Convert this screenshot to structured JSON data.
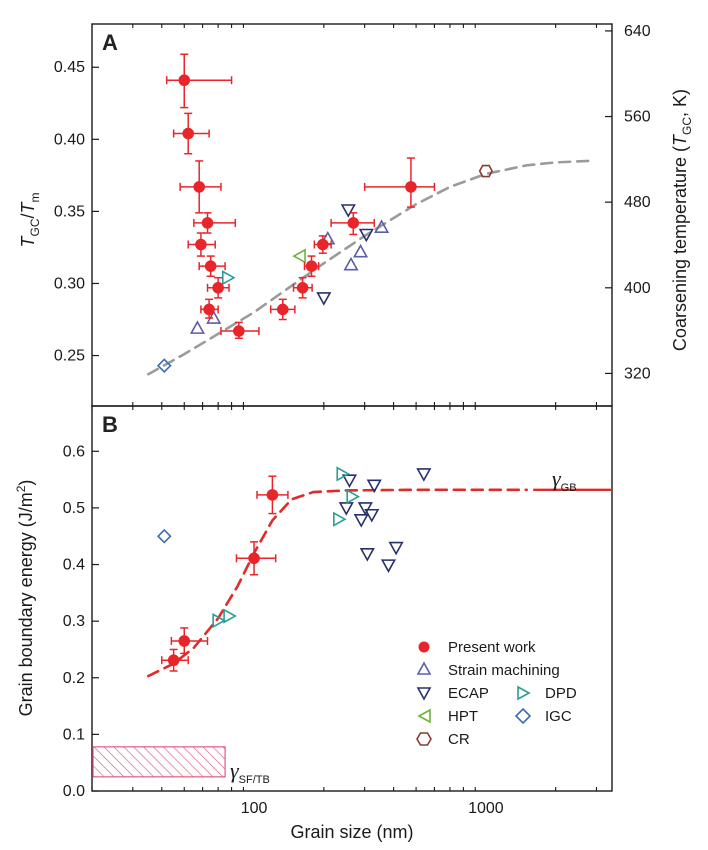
{
  "chart_data": [
    {
      "panel": "A",
      "type": "scatter",
      "xlabel": "Grain size (nm)",
      "ylabel_left": {
        "main": "T",
        "sub1": "GC",
        "slash": "/",
        "main2": "T",
        "sub2": "m"
      },
      "ylabel_right": {
        "pre": "Coarsening temperature (",
        "main": "T",
        "sub": "GC",
        "post": ", K)"
      },
      "x_scale": "log",
      "xlim": [
        20,
        3500
      ],
      "ylim": [
        0.215,
        0.48
      ],
      "y_ticks": [
        0.25,
        0.3,
        0.35,
        0.4,
        0.45
      ],
      "y_tick_labels": [
        "0.25",
        "0.30",
        "0.35",
        "0.40",
        "0.45"
      ],
      "right_ticks": [
        {
          "label": "320",
          "y": 0.2376
        },
        {
          "label": "400",
          "y": 0.297
        },
        {
          "label": "480",
          "y": 0.3564
        },
        {
          "label": "560",
          "y": 0.4158
        },
        {
          "label": "640",
          "y": 0.4752
        }
      ],
      "present_work": [
        {
          "x": 50,
          "y": 0.441,
          "xlo": 42,
          "xhi": 80,
          "ylo": 0.422,
          "yhi": 0.459
        },
        {
          "x": 52,
          "y": 0.404,
          "xlo": 45,
          "xhi": 64,
          "ylo": 0.39,
          "yhi": 0.418
        },
        {
          "x": 58,
          "y": 0.367,
          "xlo": 48,
          "xhi": 72,
          "ylo": 0.349,
          "yhi": 0.385
        },
        {
          "x": 63,
          "y": 0.342,
          "xlo": 55,
          "xhi": 83,
          "ylo": 0.335,
          "yhi": 0.349
        },
        {
          "x": 59,
          "y": 0.327,
          "xlo": 52,
          "xhi": 68,
          "ylo": 0.319,
          "yhi": 0.335
        },
        {
          "x": 65,
          "y": 0.312,
          "xlo": 58,
          "xhi": 75,
          "ylo": 0.305,
          "yhi": 0.319
        },
        {
          "x": 70,
          "y": 0.297,
          "xlo": 63,
          "xhi": 78,
          "ylo": 0.29,
          "yhi": 0.304
        },
        {
          "x": 64,
          "y": 0.282,
          "xlo": 59,
          "xhi": 70,
          "ylo": 0.276,
          "yhi": 0.289
        },
        {
          "x": 86,
          "y": 0.267,
          "xlo": 72,
          "xhi": 105,
          "ylo": 0.262,
          "yhi": 0.273
        },
        {
          "x": 133,
          "y": 0.282,
          "xlo": 118,
          "xhi": 150,
          "ylo": 0.275,
          "yhi": 0.289
        },
        {
          "x": 162,
          "y": 0.297,
          "xlo": 148,
          "xhi": 178,
          "ylo": 0.29,
          "yhi": 0.304
        },
        {
          "x": 177,
          "y": 0.312,
          "xlo": 165,
          "xhi": 190,
          "ylo": 0.305,
          "yhi": 0.319
        },
        {
          "x": 198,
          "y": 0.327,
          "xlo": 182,
          "xhi": 215,
          "ylo": 0.321,
          "yhi": 0.333
        },
        {
          "x": 268,
          "y": 0.342,
          "xlo": 215,
          "xhi": 330,
          "ylo": 0.334,
          "yhi": 0.349
        },
        {
          "x": 475,
          "y": 0.367,
          "xlo": 300,
          "xhi": 600,
          "ylo": 0.353,
          "yhi": 0.387
        }
      ],
      "strain_machining": [
        {
          "x": 57,
          "y": 0.269
        },
        {
          "x": 67,
          "y": 0.276
        },
        {
          "x": 208,
          "y": 0.331
        },
        {
          "x": 262,
          "y": 0.313
        },
        {
          "x": 288,
          "y": 0.322
        },
        {
          "x": 355,
          "y": 0.339
        }
      ],
      "ecap": [
        {
          "x": 200,
          "y": 0.29
        },
        {
          "x": 255,
          "y": 0.351
        },
        {
          "x": 305,
          "y": 0.334
        }
      ],
      "dpd": [
        {
          "x": 77,
          "y": 0.304
        }
      ],
      "hpt": [
        {
          "x": 158,
          "y": 0.319
        }
      ],
      "igc": [
        {
          "x": 41,
          "y": 0.243
        }
      ],
      "cr": [
        {
          "x": 1000,
          "y": 0.378
        }
      ],
      "fit_curve": [
        {
          "x": 35,
          "y": 0.237
        },
        {
          "x": 50,
          "y": 0.251
        },
        {
          "x": 70,
          "y": 0.265
        },
        {
          "x": 100,
          "y": 0.28
        },
        {
          "x": 150,
          "y": 0.3
        },
        {
          "x": 200,
          "y": 0.314
        },
        {
          "x": 300,
          "y": 0.333
        },
        {
          "x": 500,
          "y": 0.355
        },
        {
          "x": 700,
          "y": 0.367
        },
        {
          "x": 1000,
          "y": 0.376
        },
        {
          "x": 1500,
          "y": 0.382
        },
        {
          "x": 2000,
          "y": 0.384
        },
        {
          "x": 2800,
          "y": 0.385
        }
      ]
    },
    {
      "panel": "B",
      "type": "scatter",
      "xlabel": "Grain size (nm)",
      "ylabel": {
        "pre": "Grain boundary energy (J/m",
        "sup": "2",
        "post": ")"
      },
      "x_scale": "log",
      "xlim": [
        20,
        3500
      ],
      "x_ticks": [
        100,
        1000
      ],
      "x_tick_labels": [
        "100",
        "1000"
      ],
      "ylim": [
        0,
        0.68
      ],
      "y_ticks": [
        0,
        0.1,
        0.2,
        0.3,
        0.4,
        0.5,
        0.6
      ],
      "y_tick_labels": [
        "0.0",
        "0.1",
        "0.2",
        "0.3",
        "0.4",
        "0.5",
        "0.6"
      ],
      "present_work": [
        {
          "x": 45,
          "y": 0.231,
          "xlo": 40,
          "xhi": 52,
          "ylo": 0.212,
          "yhi": 0.25
        },
        {
          "x": 50,
          "y": 0.265,
          "xlo": 44,
          "xhi": 63,
          "ylo": 0.243,
          "yhi": 0.288
        },
        {
          "x": 100,
          "y": 0.411,
          "xlo": 84,
          "xhi": 124,
          "ylo": 0.382,
          "yhi": 0.44
        },
        {
          "x": 120,
          "y": 0.523,
          "xlo": 103,
          "xhi": 140,
          "ylo": 0.49,
          "yhi": 0.556
        }
      ],
      "strain_machining": [],
      "ecap": [
        {
          "x": 258,
          "y": 0.549
        },
        {
          "x": 250,
          "y": 0.5
        },
        {
          "x": 290,
          "y": 0.479
        },
        {
          "x": 302,
          "y": 0.5
        },
        {
          "x": 308,
          "y": 0.419
        },
        {
          "x": 330,
          "y": 0.54
        },
        {
          "x": 322,
          "y": 0.488
        },
        {
          "x": 380,
          "y": 0.399
        },
        {
          "x": 410,
          "y": 0.43
        },
        {
          "x": 540,
          "y": 0.56
        }
      ],
      "dpd": [
        {
          "x": 70,
          "y": 0.301
        },
        {
          "x": 78,
          "y": 0.309
        },
        {
          "x": 232,
          "y": 0.48
        },
        {
          "x": 240,
          "y": 0.56
        },
        {
          "x": 265,
          "y": 0.52
        }
      ],
      "hpt": [],
      "igc": [
        {
          "x": 41,
          "y": 0.45
        }
      ],
      "cr": [],
      "fit_curve": [
        {
          "x": 35,
          "y": 0.203
        },
        {
          "x": 45,
          "y": 0.225
        },
        {
          "x": 55,
          "y": 0.253
        },
        {
          "x": 70,
          "y": 0.305
        },
        {
          "x": 85,
          "y": 0.362
        },
        {
          "x": 100,
          "y": 0.42
        },
        {
          "x": 120,
          "y": 0.478
        },
        {
          "x": 145,
          "y": 0.515
        },
        {
          "x": 180,
          "y": 0.528
        },
        {
          "x": 250,
          "y": 0.531
        },
        {
          "x": 500,
          "y": 0.532
        },
        {
          "x": 1000,
          "y": 0.532
        },
        {
          "x": 1500,
          "y": 0.532
        }
      ],
      "gamma_gb": {
        "value": 0.532,
        "x_from": 1600,
        "x_to": 3500,
        "symbol": "γ",
        "sub": "GB"
      },
      "gamma_sf_tb": {
        "y_from": 0.025,
        "y_to": 0.078,
        "x_from": 20,
        "x_to": 75,
        "symbol": "γ",
        "sub": "SF/TB"
      }
    }
  ],
  "panel_labels": {
    "a": "A",
    "b": "B"
  },
  "x_axis_title": "Grain size (nm)",
  "legend": {
    "present_work": "Present work",
    "strain_machining": "Strain machining",
    "ecap": "ECAP",
    "dpd": "DPD",
    "hpt": "HPT",
    "igc": "IGC",
    "cr": "CR"
  },
  "colors": {
    "present_work": "#e8252a",
    "strain_machining": "#5b5fa8",
    "ecap": "#27306e",
    "dpd": "#2a9d96",
    "hpt": "#6cb33e",
    "igc": "#3a6db5",
    "cr": "#8b3a2f",
    "fit_a": "#9b9b9b",
    "fit_b": "#e02b2b",
    "hatch": "#e05a80",
    "axis": "#1a1a1a"
  }
}
